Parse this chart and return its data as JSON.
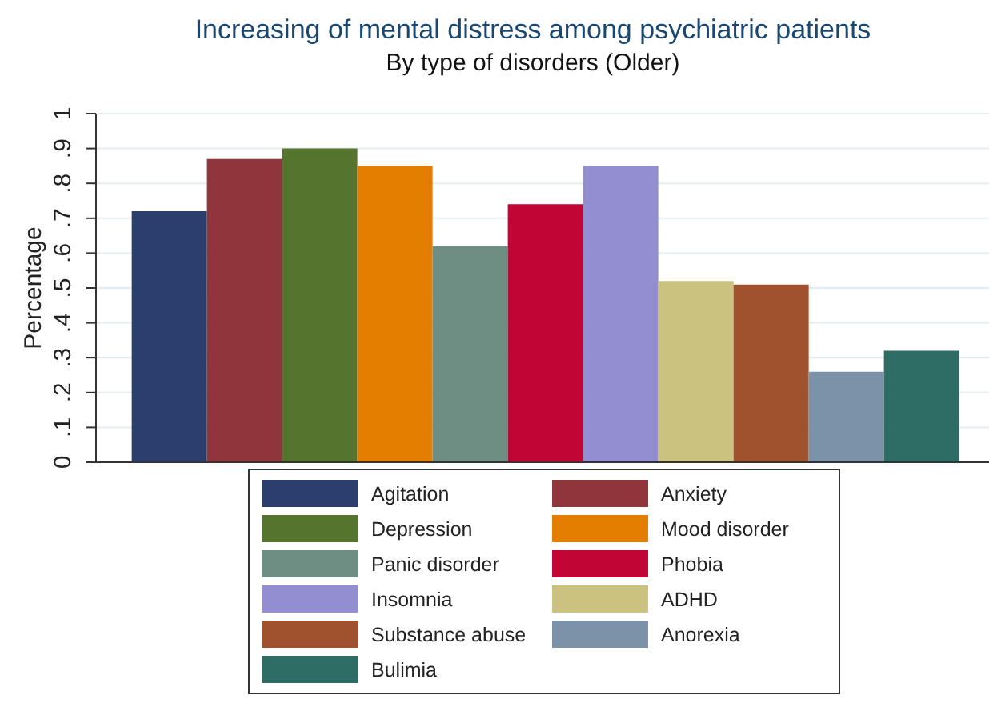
{
  "chart_data": {
    "type": "bar",
    "title": "Increasing of mental distress among psychiatric patients",
    "subtitle": "By type of disorders (Older)",
    "ylabel": "Percentage",
    "categories": [
      null
    ],
    "series": [
      {
        "name": "Agitation",
        "color": "#2a3f6e",
        "values": [
          0.72
        ]
      },
      {
        "name": "Anxiety",
        "color": "#90353b",
        "values": [
          0.87
        ]
      },
      {
        "name": "Depression",
        "color": "#55752f",
        "values": [
          0.9
        ]
      },
      {
        "name": "Mood disorder",
        "color": "#e37e00",
        "values": [
          0.85
        ]
      },
      {
        "name": "Panic disorder",
        "color": "#6e8e84",
        "values": [
          0.62
        ]
      },
      {
        "name": "Phobia",
        "color": "#c10534",
        "values": [
          0.74
        ]
      },
      {
        "name": "Insomnia",
        "color": "#938dd2",
        "values": [
          0.85
        ]
      },
      {
        "name": "ADHD",
        "color": "#cac27e",
        "values": [
          0.52
        ]
      },
      {
        "name": "Substance abuse",
        "color": "#a0522d",
        "values": [
          0.51
        ]
      },
      {
        "name": "Anorexia",
        "color": "#7b92a8",
        "values": [
          0.26
        ]
      },
      {
        "name": "Bulimia",
        "color": "#2d6d66",
        "values": [
          0.32
        ]
      }
    ],
    "ylim": [
      0,
      1
    ],
    "yticks": [
      0,
      {
        "value": 0.1,
        "label": ".1"
      },
      {
        "value": 0.2,
        "label": ".2"
      },
      {
        "value": 0.3,
        "label": ".3"
      },
      {
        "value": 0.4,
        "label": ".4"
      },
      {
        "value": 0.5,
        "label": ".5"
      },
      {
        "value": 0.6,
        "label": ".6"
      },
      {
        "value": 0.7,
        "label": ".7"
      },
      {
        "value": 0.8,
        "label": ".8"
      },
      {
        "value": 0.9,
        "label": ".9"
      },
      1
    ],
    "grid": "y",
    "legend": "bottom"
  }
}
